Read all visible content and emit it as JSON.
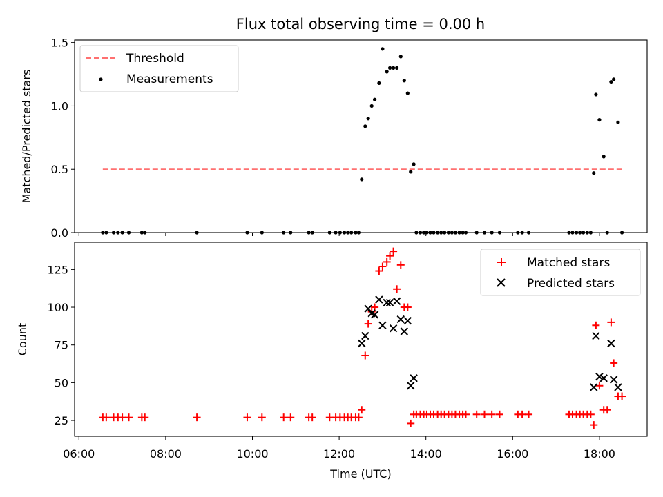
{
  "chart_data": [
    {
      "type": "scatter",
      "title": "Flux total observing time = 0.00 h",
      "xlabel": "",
      "ylabel": "Matched/Predicted stars",
      "xlim": [
        5.9,
        19.1
      ],
      "ylim": [
        0,
        1.52
      ],
      "yticks": [
        0.0,
        0.5,
        1.0,
        1.5
      ],
      "ytick_labels": [
        "0.0",
        "0.5",
        "1.0",
        "1.5"
      ],
      "legend": {
        "position": "top-left"
      },
      "threshold": {
        "name": "Threshold",
        "value": 0.5,
        "x_range": [
          6.55,
          18.55
        ],
        "color": "#ff7070"
      },
      "series": [
        {
          "name": "Measurements",
          "color": "#000000",
          "x": [
            6.55,
            6.63,
            6.8,
            6.9,
            7.0,
            7.15,
            7.45,
            7.52,
            8.72,
            9.88,
            10.22,
            10.72,
            10.88,
            11.3,
            11.38,
            11.78,
            11.92,
            12.02,
            12.12,
            12.2,
            12.28,
            12.38,
            12.45,
            12.52,
            12.6,
            12.67,
            12.75,
            12.82,
            12.92,
            13.0,
            13.1,
            13.17,
            13.25,
            13.33,
            13.42,
            13.5,
            13.58,
            13.65,
            13.72,
            13.78,
            13.87,
            13.95,
            14.02,
            14.1,
            14.18,
            14.27,
            14.35,
            14.43,
            14.52,
            14.6,
            14.68,
            14.77,
            14.85,
            14.92,
            15.17,
            15.35,
            15.52,
            15.7,
            16.12,
            16.22,
            16.37,
            17.3,
            17.38,
            17.47,
            17.55,
            17.63,
            17.72,
            17.8,
            17.87,
            17.92,
            18.0,
            18.1,
            18.18,
            18.27,
            18.33,
            18.43,
            18.52
          ],
          "y": [
            0,
            0,
            0,
            0,
            0,
            0,
            0,
            0,
            0,
            0,
            0,
            0,
            0,
            0,
            0,
            0,
            0,
            0,
            0,
            0,
            0,
            0,
            0,
            0.42,
            0.84,
            0.9,
            1.0,
            1.05,
            1.18,
            1.45,
            1.27,
            1.3,
            1.3,
            1.3,
            1.39,
            1.2,
            1.1,
            0.48,
            0.54,
            0,
            0,
            0,
            0,
            0,
            0,
            0,
            0,
            0,
            0,
            0,
            0,
            0,
            0,
            0,
            0,
            0,
            0,
            0,
            0,
            0,
            0,
            0,
            0,
            0,
            0,
            0,
            0,
            0,
            0.47,
            1.09,
            0.89,
            0.6,
            0,
            1.19,
            1.21,
            0.87,
            0
          ]
        }
      ]
    },
    {
      "type": "scatter",
      "title": "",
      "xlabel": "Time (UTC)",
      "ylabel": "Count",
      "xlim": [
        5.9,
        19.1
      ],
      "ylim": [
        14.5,
        143
      ],
      "yticks": [
        25,
        50,
        75,
        100,
        125
      ],
      "ytick_labels": [
        "25",
        "50",
        "75",
        "100",
        "125"
      ],
      "xticks": [
        6,
        8,
        10,
        12,
        14,
        16,
        18
      ],
      "xtick_labels": [
        "06:00",
        "08:00",
        "10:00",
        "12:00",
        "14:00",
        "16:00",
        "18:00"
      ],
      "legend": {
        "position": "top-right"
      },
      "series": [
        {
          "name": "Matched stars",
          "marker": "plus",
          "color": "#ff0000",
          "x": [
            6.55,
            6.63,
            6.8,
            6.9,
            7.0,
            7.15,
            7.45,
            7.52,
            8.72,
            9.88,
            10.22,
            10.72,
            10.88,
            11.3,
            11.38,
            11.78,
            11.92,
            12.02,
            12.12,
            12.2,
            12.28,
            12.38,
            12.45,
            12.52,
            12.6,
            12.67,
            12.75,
            12.82,
            12.92,
            13.0,
            13.1,
            13.17,
            13.25,
            13.33,
            13.42,
            13.5,
            13.58,
            13.65,
            13.72,
            13.78,
            13.87,
            13.95,
            14.02,
            14.1,
            14.18,
            14.27,
            14.35,
            14.43,
            14.52,
            14.6,
            14.68,
            14.77,
            14.85,
            14.92,
            15.17,
            15.35,
            15.52,
            15.7,
            16.12,
            16.22,
            16.37,
            17.3,
            17.38,
            17.47,
            17.55,
            17.63,
            17.72,
            17.8,
            17.87,
            17.92,
            18.0,
            18.1,
            18.18,
            18.27,
            18.33,
            18.43,
            18.52
          ],
          "y": [
            27,
            27,
            27,
            27,
            27,
            27,
            27,
            27,
            27,
            27,
            27,
            27,
            27,
            27,
            27,
            27,
            27,
            27,
            27,
            27,
            27,
            27,
            27,
            32,
            68,
            89,
            97,
            100,
            124,
            127,
            130,
            134,
            137,
            112,
            128,
            100,
            100,
            23,
            29,
            29,
            29,
            29,
            29,
            29,
            29,
            29,
            29,
            29,
            29,
            29,
            29,
            29,
            29,
            29,
            29,
            29,
            29,
            29,
            29,
            29,
            29,
            29,
            29,
            29,
            29,
            29,
            29,
            29,
            22,
            88,
            48,
            32,
            32,
            90,
            63,
            41,
            41
          ]
        },
        {
          "name": "Predicted stars",
          "marker": "x",
          "color": "#000000",
          "x": [
            12.52,
            12.6,
            12.67,
            12.75,
            12.82,
            12.92,
            13.0,
            13.1,
            13.17,
            13.25,
            13.33,
            13.42,
            13.5,
            13.58,
            13.65,
            13.72,
            17.87,
            17.92,
            18.0,
            18.1,
            18.27,
            18.33,
            18.43
          ],
          "y": [
            76,
            81,
            99,
            96,
            95,
            105,
            88,
            103,
            103,
            86,
            104,
            92,
            84,
            91,
            48,
            53,
            47,
            81,
            54,
            53,
            76,
            52,
            47
          ]
        }
      ]
    }
  ]
}
